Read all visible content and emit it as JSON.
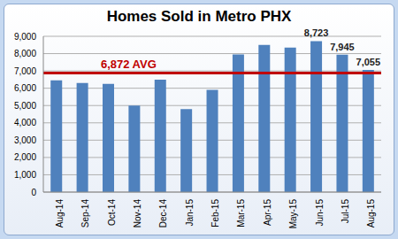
{
  "chart_data": {
    "type": "bar",
    "title": "Homes Sold in Metro PHX",
    "categories": [
      "Aug-14",
      "Sep-14",
      "Oct-14",
      "Nov-14",
      "Dec-14",
      "Jan-15",
      "Feb-15",
      "Mar-15",
      "Apr-15",
      "May-15",
      "Jun-15",
      "Jul-15",
      "Aug-15"
    ],
    "values": [
      6450,
      6300,
      6250,
      5000,
      6500,
      4800,
      5900,
      7950,
      8500,
      8350,
      8723,
      7945,
      7055
    ],
    "value_labels": [
      null,
      null,
      null,
      null,
      null,
      null,
      null,
      null,
      null,
      null,
      "8,723",
      "7,945",
      "7,055"
    ],
    "color": "#4f81bd",
    "ylim": [
      0,
      9000
    ],
    "yticks": [
      0,
      {
        "value": 1000,
        "label": "1,000"
      },
      {
        "value": 2000,
        "label": "2,000"
      },
      {
        "value": 3000,
        "label": "3,000"
      },
      {
        "value": 4000,
        "label": "4,000"
      },
      {
        "value": 5000,
        "label": "5,000"
      },
      {
        "value": 6000,
        "label": "6,000"
      },
      {
        "value": 7000,
        "label": "7,000"
      },
      {
        "value": 8000,
        "label": "8,000"
      },
      {
        "value": 9000,
        "label": "9,000"
      }
    ],
    "grid": true,
    "annotations": [
      {
        "type": "hline",
        "y": 6872,
        "label": "6,872 AVG",
        "color": "#c00000"
      }
    ]
  }
}
